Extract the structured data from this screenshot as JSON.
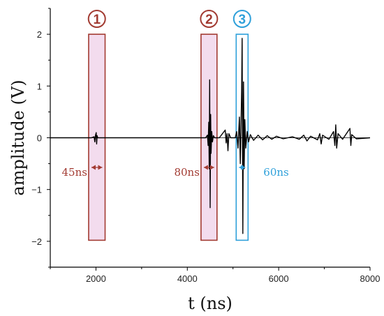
{
  "chart_data": {
    "type": "line",
    "xlabel": "t (ns)",
    "ylabel": "amplitude (V)",
    "xlim": [
      1000,
      8000
    ],
    "ylim": [
      -2.5,
      2.5
    ],
    "x_ticks": [
      2000,
      4000,
      6000,
      8000
    ],
    "y_ticks": [
      -2,
      -1,
      0,
      1,
      2
    ],
    "x_tick_labels": [
      "2000",
      "4000",
      "6000",
      "8000"
    ],
    "y_tick_labels": [
      "−2",
      "−1",
      "0",
      "1",
      "2"
    ],
    "grid": false,
    "series": [
      {
        "color": "#000000",
        "points": [
          [
            1000,
            0
          ],
          [
            1900,
            0
          ],
          [
            1960,
            0.02
          ],
          [
            1975,
            -0.08
          ],
          [
            1990,
            0.05
          ],
          [
            2005,
            0.1
          ],
          [
            2015,
            -0.12
          ],
          [
            2025,
            0.04
          ],
          [
            2040,
            0
          ],
          [
            2100,
            0
          ],
          [
            4400,
            0
          ],
          [
            4440,
            0.05
          ],
          [
            4455,
            -0.15
          ],
          [
            4470,
            0.3
          ],
          [
            4480,
            -0.6
          ],
          [
            4490,
            1.12
          ],
          [
            4500,
            -1.35
          ],
          [
            4510,
            0.45
          ],
          [
            4520,
            -0.3
          ],
          [
            4535,
            0.12
          ],
          [
            4550,
            -0.08
          ],
          [
            4570,
            0.04
          ],
          [
            4600,
            0
          ],
          [
            4700,
            0
          ],
          [
            4830,
            0.15
          ],
          [
            4850,
            -0.1
          ],
          [
            4870,
            0.08
          ],
          [
            4890,
            -0.25
          ],
          [
            4910,
            0.08
          ],
          [
            4950,
            0
          ],
          [
            5050,
            0
          ],
          [
            5080,
            0.12
          ],
          [
            5110,
            -0.2
          ],
          [
            5140,
            0.4
          ],
          [
            5160,
            -0.5
          ],
          [
            5190,
            0.9
          ],
          [
            5200,
            1.92
          ],
          [
            5215,
            -1.85
          ],
          [
            5230,
            1.08
          ],
          [
            5245,
            -0.6
          ],
          [
            5260,
            0.35
          ],
          [
            5280,
            -0.2
          ],
          [
            5310,
            0.12
          ],
          [
            5340,
            -0.08
          ],
          [
            5380,
            0.06
          ],
          [
            5450,
            -0.05
          ],
          [
            5550,
            0.05
          ],
          [
            5650,
            -0.04
          ],
          [
            5750,
            0.04
          ],
          [
            5850,
            -0.03
          ],
          [
            5950,
            0.03
          ],
          [
            6100,
            -0.02
          ],
          [
            6300,
            0.02
          ],
          [
            6450,
            -0.03
          ],
          [
            6550,
            0.05
          ],
          [
            6620,
            -0.06
          ],
          [
            6700,
            0.03
          ],
          [
            6850,
            -0.04
          ],
          [
            6900,
            0.08
          ],
          [
            6930,
            -0.12
          ],
          [
            6960,
            0.05
          ],
          [
            7100,
            -0.03
          ],
          [
            7200,
            0.12
          ],
          [
            7230,
            -0.15
          ],
          [
            7250,
            0.25
          ],
          [
            7270,
            -0.2
          ],
          [
            7300,
            0.08
          ],
          [
            7400,
            -0.03
          ],
          [
            7560,
            0.18
          ],
          [
            7580,
            -0.15
          ],
          [
            7600,
            0.06
          ],
          [
            7700,
            -0.02
          ],
          [
            8000,
            0
          ]
        ]
      }
    ],
    "annotations": [
      {
        "label": "1",
        "x_range": [
          1840,
          2200
        ],
        "y_range": [
          -1.98,
          2.0
        ],
        "color": "#a23b32",
        "fill": "#f3dcee",
        "duration": "45ns",
        "duration_side": "left"
      },
      {
        "label": "2",
        "x_range": [
          4300,
          4650
        ],
        "y_range": [
          -1.98,
          2.0
        ],
        "color": "#a23b32",
        "fill": "#f3dcee",
        "duration": "80ns",
        "duration_side": "left"
      },
      {
        "label": "3",
        "x_range": [
          5070,
          5330
        ],
        "y_range": [
          -1.98,
          2.0
        ],
        "color": "#2ea0da",
        "fill": "#ffffff",
        "duration": "60ns",
        "duration_side": "right"
      }
    ]
  }
}
